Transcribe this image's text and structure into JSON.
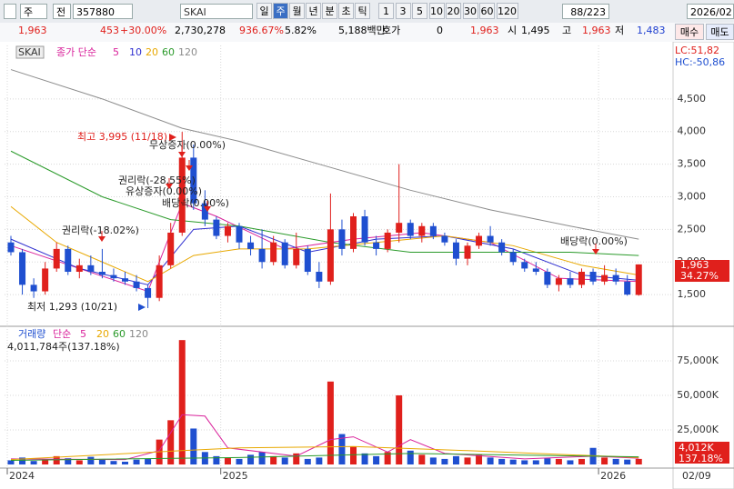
{
  "toolbar": {
    "period_type": "주",
    "market": "전",
    "code": "357880",
    "name": "SKAI",
    "periods": [
      "일",
      "주",
      "월",
      "년",
      "분",
      "초",
      "틱"
    ],
    "intervals": [
      "1",
      "3",
      "5",
      "10",
      "20",
      "30",
      "60",
      "120"
    ],
    "count": "88/223",
    "date": "2026/02"
  },
  "quote": {
    "price": "1,963",
    "change": "453",
    "change_pct": "+30.00%",
    "volume": "2,730,278",
    "volume_pct": "936.67%",
    "turnover_pct": "5.82%",
    "amount": "5,188백만",
    "bid_label": "호가",
    "bid": "0",
    "bid_price": "1,963",
    "open_label": "시",
    "open": "1,495",
    "high_label": "고",
    "high": "1,963",
    "low_label": "저",
    "low": "1,483",
    "buy": "매수",
    "sell": "매도"
  },
  "chart": {
    "type": "candlestick",
    "legend": {
      "name": "SKAI",
      "method": "종가 단순",
      "periods": [
        "5",
        "10",
        "20",
        "60",
        "120"
      ]
    },
    "lc": "LC:51,82",
    "hc": "HC:-50,86",
    "ylim": [
      1028,
      5292
    ],
    "yticks": [
      {
        "value": 1500,
        "label": "1,500"
      },
      {
        "value": 2000,
        "label": "2,000"
      },
      {
        "value": 2500,
        "label": "2,500"
      },
      {
        "value": 3000,
        "label": "3,000"
      },
      {
        "value": 3500,
        "label": "3,500"
      },
      {
        "value": 4000,
        "label": "4,000"
      },
      {
        "value": 4500,
        "label": "4,500"
      }
    ],
    "xticks": [
      {
        "value": 0,
        "label": "2024"
      },
      {
        "value": 18.7,
        "label": "2025"
      },
      {
        "value": 51.8,
        "label": "2026"
      }
    ],
    "cursor_date": "02/09",
    "open": [
      2300,
      2150,
      1650,
      1550,
      1900,
      2200,
      1850,
      1950,
      1850,
      1800,
      1750,
      1700,
      1600,
      1450,
      1950,
      2450,
      3600,
      2900,
      2650,
      2400,
      2550,
      2300,
      2200,
      2000,
      2300,
      1950,
      2200,
      1850,
      1700,
      2500,
      2200,
      2700,
      2300,
      2200,
      2450,
      2600,
      2400,
      2550,
      2400,
      2300,
      2050,
      2250,
      2400,
      2300,
      2150,
      2000,
      1900,
      1850,
      1650,
      1750,
      1650,
      1850,
      1700,
      1800,
      1700,
      1495
    ],
    "high": [
      2400,
      2200,
      1750,
      2000,
      2300,
      2250,
      2050,
      2100,
      2200,
      1900,
      1850,
      1800,
      1650,
      2100,
      2600,
      3995,
      3800,
      3100,
      2700,
      2600,
      2600,
      2400,
      2500,
      2400,
      2350,
      2450,
      2250,
      2000,
      3050,
      2650,
      2750,
      2800,
      2400,
      2500,
      3500,
      2650,
      2600,
      2600,
      2450,
      2350,
      2300,
      2450,
      2550,
      2350,
      2200,
      2050,
      2000,
      1900,
      1800,
      1850,
      1900,
      1900,
      1950,
      1900,
      1800,
      1963
    ],
    "low": [
      2100,
      1500,
      1450,
      1500,
      1850,
      1800,
      1750,
      1800,
      1750,
      1700,
      1650,
      1550,
      1293,
      1400,
      1900,
      2400,
      2800,
      2550,
      2350,
      2300,
      2200,
      2100,
      1900,
      1950,
      1900,
      1900,
      1800,
      1600,
      1650,
      2100,
      2150,
      2250,
      2100,
      2150,
      2300,
      2350,
      2300,
      2350,
      2250,
      1950,
      1950,
      2200,
      2250,
      2100,
      1950,
      1850,
      1800,
      1600,
      1550,
      1600,
      1600,
      1650,
      1650,
      1650,
      1483,
      1483
    ],
    "close": [
      2150,
      1650,
      1550,
      1900,
      2200,
      1850,
      1950,
      1850,
      1800,
      1750,
      1700,
      1600,
      1450,
      1950,
      2450,
      3600,
      2900,
      2650,
      2400,
      2550,
      2300,
      2200,
      2000,
      2300,
      1950,
      2200,
      1850,
      1700,
      2500,
      2200,
      2700,
      2300,
      2200,
      2450,
      2600,
      2400,
      2550,
      2400,
      2300,
      2050,
      2250,
      2400,
      2300,
      2150,
      2000,
      1900,
      1850,
      1650,
      1750,
      1650,
      1850,
      1700,
      1800,
      1700,
      1500,
      1963
    ],
    "ma": [
      {
        "name": "5",
        "color": "#d9229b",
        "x": [
          0,
          6,
          12,
          15,
          18,
          24,
          30,
          36,
          42,
          48,
          55
        ],
        "values": [
          2250,
          1900,
          1550,
          2900,
          2700,
          2200,
          2350,
          2450,
          2300,
          1750,
          1700
        ]
      },
      {
        "name": "10",
        "color": "#3030d0",
        "x": [
          0,
          6,
          12,
          16,
          20,
          26,
          32,
          38,
          44,
          50,
          55
        ],
        "values": [
          2350,
          1900,
          1650,
          2500,
          2550,
          2150,
          2350,
          2400,
          2200,
          1800,
          1720
        ]
      },
      {
        "name": "20",
        "color": "#e8a800",
        "x": [
          0,
          4,
          8,
          12,
          16,
          20,
          26,
          32,
          38,
          44,
          50,
          55
        ],
        "values": [
          2850,
          2300,
          2000,
          1700,
          2100,
          2200,
          2200,
          2300,
          2400,
          2250,
          1950,
          1800
        ]
      },
      {
        "name": "60",
        "color": "#2a9a2a",
        "x": [
          0,
          8,
          14,
          20,
          28,
          35,
          42,
          49,
          55
        ],
        "values": [
          3700,
          3000,
          2650,
          2550,
          2300,
          2150,
          2150,
          2150,
          2100
        ]
      },
      {
        "name": "120",
        "color": "#8c8c8c",
        "x": [
          0,
          8,
          15,
          20,
          28,
          35,
          42,
          49,
          55
        ],
        "values": [
          4950,
          4500,
          4050,
          3850,
          3450,
          3100,
          2800,
          2550,
          2350
        ]
      }
    ],
    "annotations": [
      "최고 3,995 (11/18)",
      "무상증자(0.00%)",
      "권리락(-28.55%)",
      "유상증자(0.00%)",
      "배당락(0.00%)",
      "권리락(-18.02%)",
      "최저 1,293 (10/21)",
      "배당락(0.00%)"
    ],
    "price_tag": "1,963",
    "price_tag_pct": "34.27%"
  },
  "volume": {
    "legend": {
      "name": "거래량",
      "method": "단순",
      "periods": [
        "5",
        "20",
        "60",
        "120"
      ]
    },
    "info": "4,011,784주(137.18%)",
    "ylim": [
      0,
      98000
    ],
    "yticks": [
      {
        "value": 25000,
        "label": "25,000K"
      },
      {
        "value": 50000,
        "label": "50,000K"
      },
      {
        "value": 75000,
        "label": "75,000K"
      }
    ],
    "values": [
      3000,
      5000,
      2500,
      4000,
      6000,
      4500,
      3000,
      5500,
      4000,
      2500,
      2000,
      3500,
      4000,
      18000,
      32000,
      90000,
      26000,
      9000,
      6000,
      5000,
      4000,
      7000,
      9000,
      6000,
      5000,
      8000,
      4000,
      5000,
      60000,
      22000,
      13000,
      8000,
      6000,
      9000,
      50000,
      10000,
      7000,
      5000,
      4000,
      6000,
      5000,
      7000,
      5000,
      4000,
      3500,
      3000,
      3000,
      4500,
      4000,
      3000,
      4000,
      12000,
      5000,
      4000,
      3500,
      4012
    ],
    "ma": [
      {
        "name": "5",
        "color": "#d9229b",
        "x": [
          0,
          10,
          13,
          15,
          17,
          19,
          25,
          28,
          30,
          33,
          35,
          38,
          45,
          51,
          55
        ],
        "values": [
          4000,
          3500,
          10000,
          36000,
          35000,
          12000,
          6000,
          18000,
          20000,
          9000,
          18000,
          8000,
          4000,
          6000,
          4500
        ]
      },
      {
        "name": "20",
        "color": "#e8a800",
        "x": [
          0,
          15,
          20,
          30,
          40,
          55
        ],
        "values": [
          3500,
          10000,
          12000,
          13000,
          10000,
          5000
        ]
      },
      {
        "name": "60",
        "color": "#2a9a2a",
        "x": [
          0,
          20,
          35,
          55
        ],
        "values": [
          3000,
          5000,
          8000,
          5500
        ]
      }
    ],
    "tag": "4,012K",
    "tag_pct": "137.18%"
  }
}
